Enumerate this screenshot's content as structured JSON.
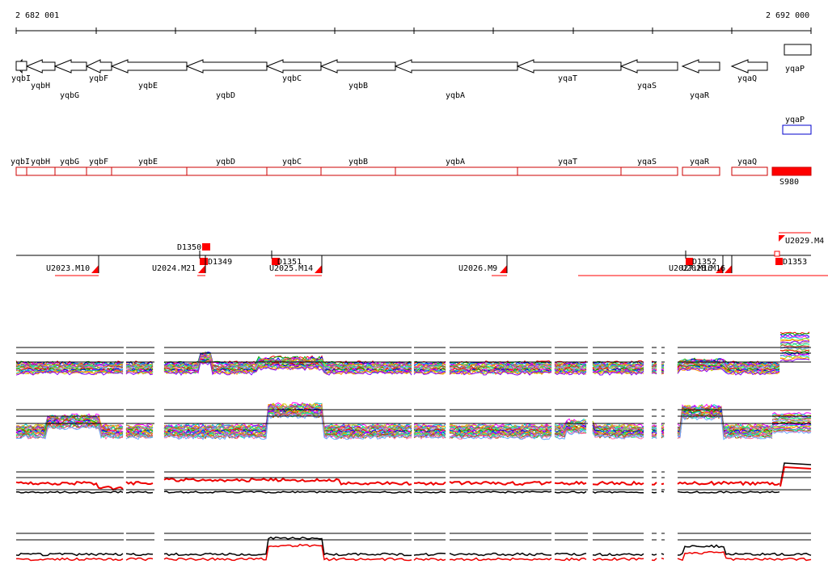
{
  "coords": {
    "start": "2 682 001",
    "end": "2 692 000"
  },
  "genes": [
    {
      "name": "yqbI"
    },
    {
      "name": "yqbH"
    },
    {
      "name": "yqbG"
    },
    {
      "name": "yqbF"
    },
    {
      "name": "yqbE"
    },
    {
      "name": "yqbD"
    },
    {
      "name": "yqbC"
    },
    {
      "name": "yqbB"
    },
    {
      "name": "yqbA"
    },
    {
      "name": "yqaT"
    },
    {
      "name": "yqaS"
    },
    {
      "name": "yqaR"
    },
    {
      "name": "yqaQ"
    },
    {
      "name": "yqaP"
    }
  ],
  "forward_genes": [
    "yqaP"
  ],
  "segments": {
    "names": [
      "yqbI",
      "yqbH",
      "yqbG",
      "yqbF",
      "yqbE",
      "yqbD",
      "yqbC",
      "yqbB",
      "yqbA",
      "yqaT",
      "yqaS",
      "yqaR",
      "yqaQ"
    ],
    "filled_name": "S980"
  },
  "features": {
    "upper": [
      "D1350",
      "D1349",
      "D1351",
      "D1352",
      "D1353",
      "U2029.M4"
    ],
    "lower": [
      "U2023.M10",
      "U2024.M21",
      "U2025.M14",
      "U2026.M9",
      "U2027.M16",
      "U2028.M16"
    ]
  },
  "colors": {
    "gene_stroke": "#000000",
    "segment_stroke": "#cc0000",
    "segment_fill": "#ff0000",
    "forward_gene_stroke": "#0000cc",
    "feature_fill": "#ff0000",
    "baseline": "#000000",
    "track_red": "#ee0000",
    "track_black": "#000000"
  },
  "tracks": [
    {
      "name": "tiling-track-1",
      "type": "multi-line"
    },
    {
      "name": "tiling-track-2",
      "type": "multi-line"
    },
    {
      "name": "tiling-track-3",
      "type": "red-black"
    },
    {
      "name": "tiling-track-4",
      "type": "red-black"
    }
  ]
}
